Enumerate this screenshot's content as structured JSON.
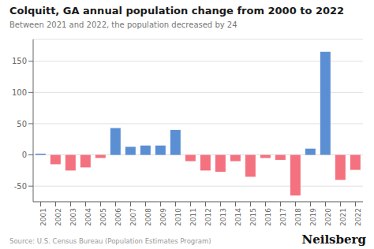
{
  "chart_data": {
    "type": "bar",
    "title": "Colquitt, GA annual population change from 2000 to 2022",
    "subtitle": "Between 2021 and 2022, the population decreased by 24",
    "annotations": [
      "Source: U.S. Census Bureau (Population Estimates Program)",
      "Neilsberg"
    ],
    "categories": [
      "2001",
      "2002",
      "2003",
      "2004",
      "2005",
      "2006",
      "2007",
      "2008",
      "2009",
      "2010",
      "2011",
      "2012",
      "2013",
      "2014",
      "2015",
      "2016",
      "2017",
      "2018",
      "2019",
      "2020",
      "2021",
      "2022"
    ],
    "values": [
      2,
      -15,
      -25,
      -20,
      -5,
      43,
      13,
      15,
      15,
      40,
      -10,
      -25,
      -27,
      -10,
      -35,
      -5,
      -8,
      -65,
      10,
      165,
      -40,
      -24
    ],
    "colors": [
      "#5B8FD4",
      "#F4717F",
      "#F4717F",
      "#F4717F",
      "#F4717F",
      "#5B8FD4",
      "#5B8FD4",
      "#5B8FD4",
      "#5B8FD4",
      "#5B8FD4",
      "#F4717F",
      "#F4717F",
      "#F4717F",
      "#F4717F",
      "#F4717F",
      "#F4717F",
      "#F4717F",
      "#F4717F",
      "#5B8FD4",
      "#5B8FD4",
      "#F4717F",
      "#F4717F"
    ],
    "ylim": [
      -75,
      185
    ],
    "yticks": [
      -50,
      0,
      50,
      100,
      150
    ],
    "grid": true
  }
}
